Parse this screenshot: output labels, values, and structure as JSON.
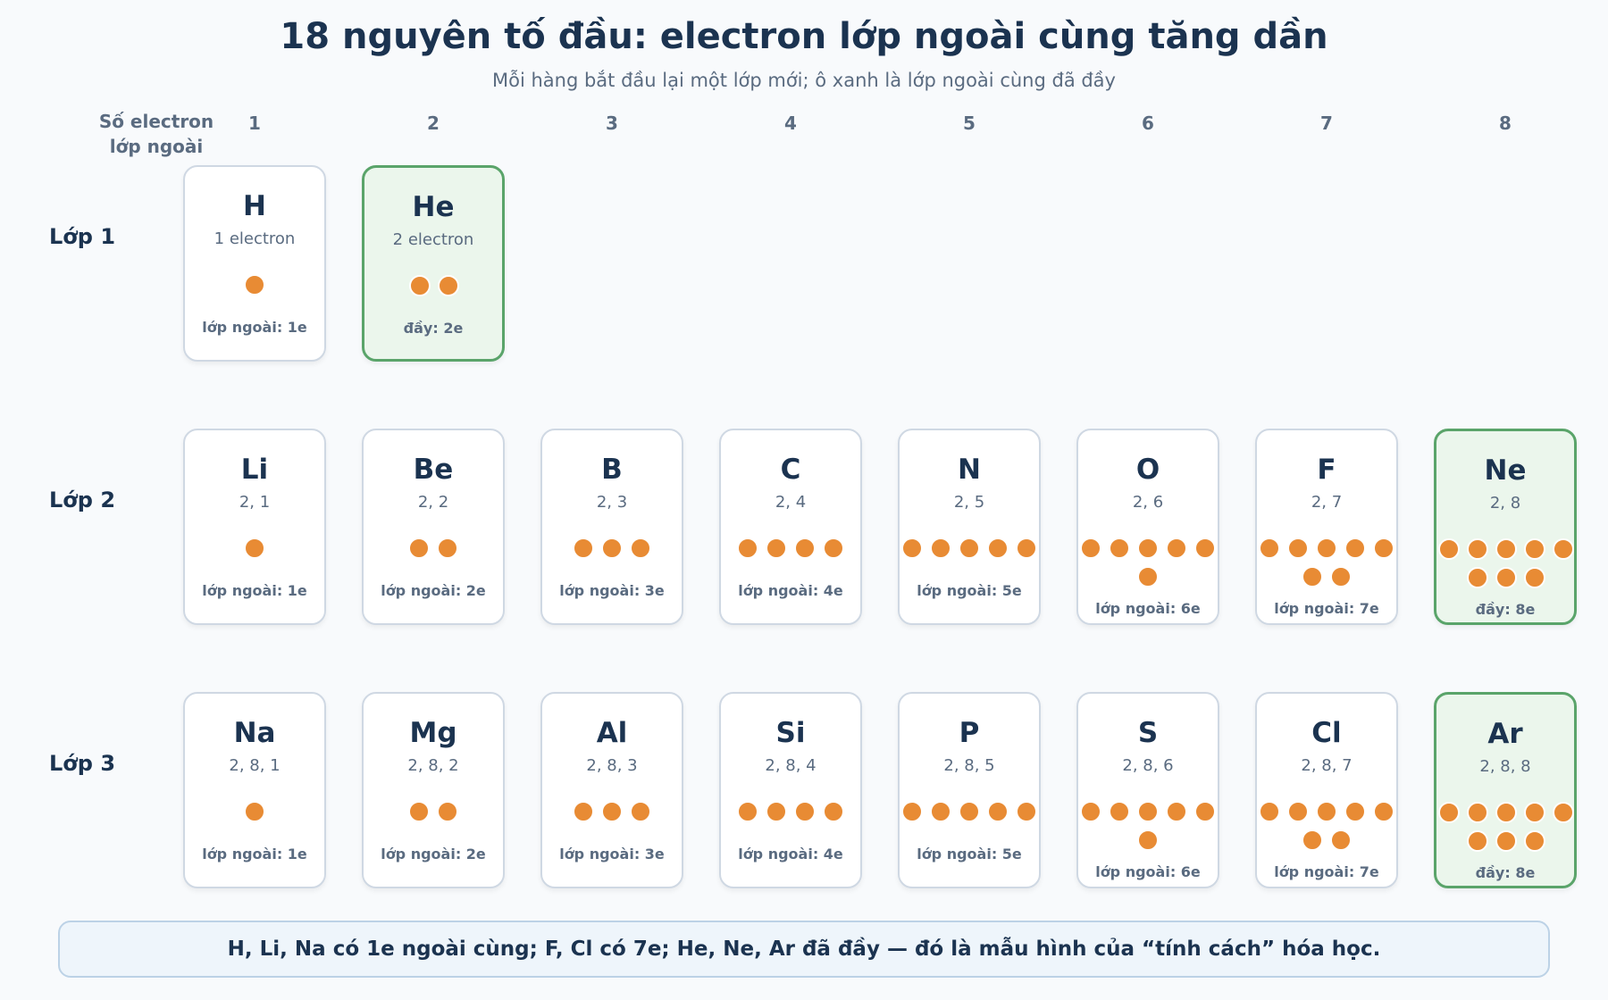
{
  "title": "18 nguyên tố đầu: electron lớp ngoài cùng tăng dần",
  "subtitle": "Mỗi hàng bắt đầu lại một lớp mới; ô xanh là lớp ngoài cùng đã đầy",
  "column_header": "Số electron lớp ngoài",
  "columns": [
    "1",
    "2",
    "3",
    "4",
    "5",
    "6",
    "7",
    "8"
  ],
  "colors": {
    "electron": "#e88b34",
    "full_fill": "#ebf6ec",
    "full_border": "#5aa46a"
  },
  "rows": [
    {
      "label": "Lớp 1",
      "elements": [
        {
          "symbol": "H",
          "config": "1 electron",
          "outer": 1,
          "caption": "lớp ngoài: 1e",
          "full": false
        },
        {
          "symbol": "He",
          "config": "2 electron",
          "outer": 2,
          "caption": "đầy: 2e",
          "full": true
        }
      ]
    },
    {
      "label": "Lớp 2",
      "elements": [
        {
          "symbol": "Li",
          "config": "2, 1",
          "outer": 1,
          "caption": "lớp ngoài: 1e",
          "full": false
        },
        {
          "symbol": "Be",
          "config": "2, 2",
          "outer": 2,
          "caption": "lớp ngoài: 2e",
          "full": false
        },
        {
          "symbol": "B",
          "config": "2, 3",
          "outer": 3,
          "caption": "lớp ngoài: 3e",
          "full": false
        },
        {
          "symbol": "C",
          "config": "2, 4",
          "outer": 4,
          "caption": "lớp ngoài: 4e",
          "full": false
        },
        {
          "symbol": "N",
          "config": "2, 5",
          "outer": 5,
          "caption": "lớp ngoài: 5e",
          "full": false
        },
        {
          "symbol": "O",
          "config": "2, 6",
          "outer": 6,
          "caption": "lớp ngoài: 6e",
          "full": false
        },
        {
          "symbol": "F",
          "config": "2, 7",
          "outer": 7,
          "caption": "lớp ngoài: 7e",
          "full": false
        },
        {
          "symbol": "Ne",
          "config": "2, 8",
          "outer": 8,
          "caption": "đầy: 8e",
          "full": true
        }
      ]
    },
    {
      "label": "Lớp 3",
      "elements": [
        {
          "symbol": "Na",
          "config": "2, 8, 1",
          "outer": 1,
          "caption": "lớp ngoài: 1e",
          "full": false
        },
        {
          "symbol": "Mg",
          "config": "2, 8, 2",
          "outer": 2,
          "caption": "lớp ngoài: 2e",
          "full": false
        },
        {
          "symbol": "Al",
          "config": "2, 8, 3",
          "outer": 3,
          "caption": "lớp ngoài: 3e",
          "full": false
        },
        {
          "symbol": "Si",
          "config": "2, 8, 4",
          "outer": 4,
          "caption": "lớp ngoài: 4e",
          "full": false
        },
        {
          "symbol": "P",
          "config": "2, 8, 5",
          "outer": 5,
          "caption": "lớp ngoài: 5e",
          "full": false
        },
        {
          "symbol": "S",
          "config": "2, 8, 6",
          "outer": 6,
          "caption": "lớp ngoài: 6e",
          "full": false
        },
        {
          "symbol": "Cl",
          "config": "2, 8, 7",
          "outer": 7,
          "caption": "lớp ngoài: 7e",
          "full": false
        },
        {
          "symbol": "Ar",
          "config": "2, 8, 8",
          "outer": 8,
          "caption": "đầy: 8e",
          "full": true
        }
      ]
    }
  ],
  "footer_note": "H, Li, Na có 1e ngoài cùng; F, Cl có 7e; He, Ne, Ar đã đầy — đó là mẫu hình của “tính cách” hóa học."
}
